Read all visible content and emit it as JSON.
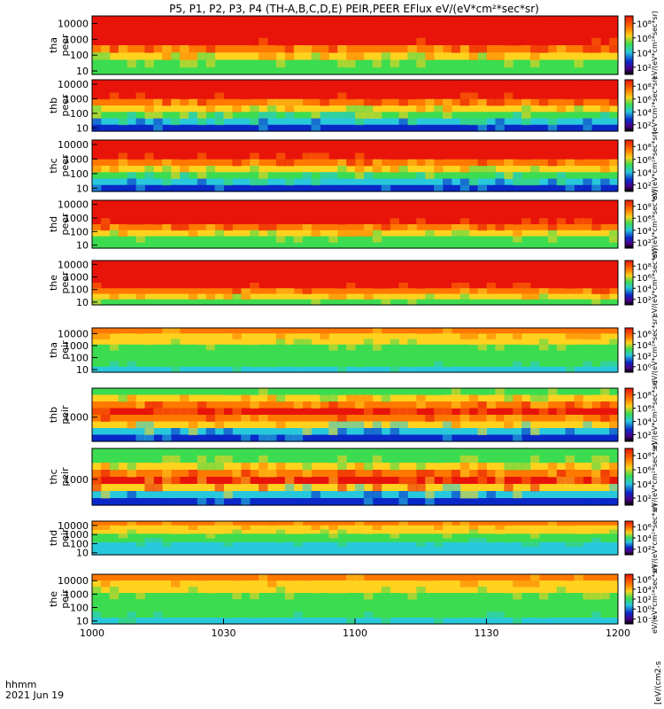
{
  "title": "P5, P1, P2, P3, P4 (TH-A,B,C,D,E) PEIR,PEER EFlux eV/(eV*cm²*sec*sr)",
  "colors": {
    "red": "#e8140a",
    "orange": "#ff7800",
    "yellow": "#ffd21e",
    "green": "#3cdc50",
    "cyan": "#28c8dc",
    "blue": "#0a28c8",
    "black": "#000000"
  },
  "chart_data": {
    "type": "heatmap",
    "x_tick_labels": [
      "1000",
      "1030",
      "1100",
      "1130",
      "1200"
    ],
    "x_ticks_minutes": [
      0,
      30,
      60,
      90,
      120
    ],
    "x_range_minutes": [
      0,
      120
    ],
    "x_axis_label": "hhmm",
    "date_label": "2021 Jun 19",
    "colorbar_label": "[eV/(cm2-s",
    "panels": [
      {
        "probe": "tha",
        "species": "peer",
        "y_scale": "log",
        "y_range_ev": [
          6,
          30000
        ],
        "y_ticks": [
          "10",
          "100",
          "1000",
          "10000"
        ],
        "colorbar_ticks": [
          "10²",
          "10⁴",
          "10⁶",
          "10⁸"
        ],
        "colorbar_range": [
          1,
          9
        ],
        "colorbar_label": "eV/(eV*cm²*sec*sr)",
        "row_colors": [
          "red",
          "red",
          "red",
          "red",
          "orange",
          "yellow",
          "green",
          "green"
        ]
      },
      {
        "probe": "thb",
        "species": "peer",
        "y_scale": "log",
        "y_range_ev": [
          6,
          20000
        ],
        "y_ticks": [
          "10",
          "100",
          "1000",
          "10000"
        ],
        "colorbar_ticks": [
          "10²",
          "10⁴",
          "10⁶",
          "10⁸"
        ],
        "colorbar_range": [
          1,
          9
        ],
        "colorbar_label": "(eV*cm²*sec*sr)",
        "row_colors": [
          "red",
          "red",
          "red",
          "orange",
          "yellow",
          "green",
          "cyan",
          "blue"
        ]
      },
      {
        "probe": "thc",
        "species": "peer",
        "y_scale": "log",
        "y_range_ev": [
          6,
          20000
        ],
        "y_ticks": [
          "10",
          "100",
          "1000",
          "10000"
        ],
        "colorbar_ticks": [
          "10²",
          "10⁴",
          "10⁶",
          "10⁸"
        ],
        "colorbar_range": [
          1,
          9
        ],
        "colorbar_label": "eV/(eV*cm²*sec*sr)",
        "row_colors": [
          "red",
          "red",
          "red",
          "orange",
          "yellow",
          "green",
          "cyan",
          "blue"
        ]
      },
      {
        "probe": "thd",
        "species": "peer",
        "y_scale": "log",
        "y_range_ev": [
          6,
          20000
        ],
        "y_ticks": [
          "10",
          "100",
          "1000",
          "10000"
        ],
        "colorbar_ticks": [
          "10²",
          "10⁴",
          "10⁶",
          "10⁸"
        ],
        "colorbar_range": [
          1,
          9
        ],
        "colorbar_label": "eV/(eV*cm²*sec*sr)",
        "row_colors": [
          "red",
          "red",
          "red",
          "red",
          "orange",
          "yellow",
          "green",
          "green"
        ]
      },
      {
        "probe": "the",
        "species": "peer",
        "y_scale": "log",
        "y_range_ev": [
          6,
          20000
        ],
        "y_ticks": [
          "10",
          "100",
          "1000",
          "10000"
        ],
        "colorbar_ticks": [
          "10²",
          "10⁴",
          "10⁶",
          "10⁸"
        ],
        "colorbar_range": [
          1,
          9
        ],
        "colorbar_label": "eV/(eV*cm²*sec*sr)",
        "row_colors": [
          "red",
          "red",
          "red",
          "red",
          "red",
          "orange",
          "yellow",
          "green"
        ]
      },
      {
        "probe": "tha",
        "species": "peir",
        "y_scale": "log",
        "y_range_ev": [
          6,
          30000
        ],
        "y_ticks": [
          "10",
          "100",
          "1000",
          "10000"
        ],
        "colorbar_ticks": [
          "10⁰",
          "10²",
          "10⁴",
          "10⁶"
        ],
        "colorbar_range": [
          -1,
          7
        ],
        "colorbar_label": "eV/(eV*cm²*sec*sr)",
        "row_colors": [
          "orange",
          "yellow",
          "yellow",
          "green",
          "green",
          "green",
          "green",
          "cyan"
        ]
      },
      {
        "probe": "thb",
        "species": "peir",
        "y_scale": "log",
        "y_range_ev": [
          400,
          3000
        ],
        "y_ticks": [
          "1000"
        ],
        "colorbar_ticks": [
          "10²",
          "10⁴",
          "10⁶",
          "10⁸"
        ],
        "colorbar_range": [
          1,
          9
        ],
        "colorbar_label": "eV/(eV*cm²*sec*sr)",
        "row_colors": [
          "green",
          "yellow",
          "orange",
          "red",
          "orange",
          "yellow",
          "cyan",
          "blue"
        ]
      },
      {
        "probe": "thc",
        "species": "peir",
        "y_scale": "log",
        "y_range_ev": [
          400,
          3000
        ],
        "y_ticks": [
          "1000"
        ],
        "colorbar_ticks": [
          "10²",
          "10⁴",
          "10⁶",
          "10⁸"
        ],
        "colorbar_range": [
          1,
          9
        ],
        "colorbar_label": "eV/(eV*cm²*sec*sr)",
        "row_colors": [
          "green",
          "green",
          "yellow",
          "orange",
          "red",
          "yellow",
          "cyan",
          "blue"
        ]
      },
      {
        "probe": "thd",
        "species": "peir",
        "y_scale": "log",
        "y_range_ev": [
          6,
          30000
        ],
        "y_ticks": [
          "10",
          "100",
          "1000",
          "10000"
        ],
        "colorbar_ticks": [
          "10²",
          "10⁴",
          "10⁶"
        ],
        "colorbar_range": [
          1,
          7
        ],
        "colorbar_label": "eV/(eV*cm²*sec*sr)",
        "row_colors": [
          "orange",
          "yellow",
          "yellow",
          "green",
          "green",
          "cyan",
          "cyan",
          "cyan"
        ]
      },
      {
        "probe": "the",
        "species": "peir",
        "y_scale": "log",
        "y_range_ev": [
          6,
          30000
        ],
        "y_ticks": [
          "10",
          "100",
          "1000",
          "10000"
        ],
        "colorbar_ticks": [
          "10⁻²",
          "10⁰",
          "10²",
          "10⁴",
          "10⁶"
        ],
        "colorbar_range": [
          -3,
          7
        ],
        "colorbar_label": "eV/(eV*cm²*sec*sr)",
        "row_colors": [
          "orange",
          "yellow",
          "yellow",
          "green",
          "green",
          "green",
          "green",
          "cyan"
        ]
      }
    ]
  }
}
